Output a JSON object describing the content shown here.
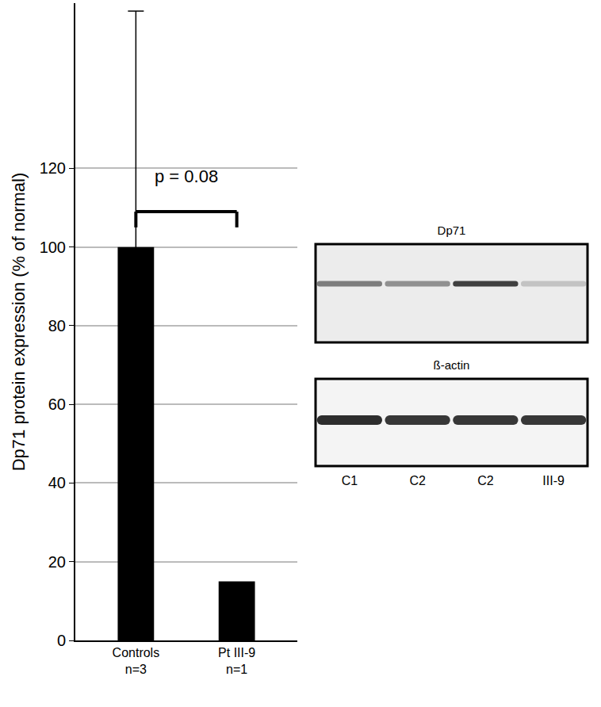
{
  "chart_data": {
    "type": "bar",
    "categories": [
      "Controls\nn=3",
      "Pt III-9\nn=1"
    ],
    "values": [
      100,
      15
    ],
    "error_plus": [
      60,
      null
    ],
    "error_minus": [
      40,
      null
    ],
    "color": "#000000",
    "y_label": "Dp71 protein expression (% of normal)",
    "ylim": [
      0,
      162
    ],
    "yticks": [
      0,
      20,
      40,
      60,
      80,
      100,
      120
    ],
    "grid": true,
    "annotations": [
      {
        "text": "p = 0.08",
        "between": [
          0,
          1
        ],
        "y": 115
      }
    ]
  },
  "blots": [
    {
      "label": "Dp71",
      "band_intensity": [
        0.55,
        0.45,
        0.85,
        0.2
      ]
    },
    {
      "label": "ß-actin",
      "band_intensity": [
        0.95,
        0.9,
        0.9,
        0.9
      ]
    }
  ],
  "lanes": [
    "C1",
    "C2",
    "C2",
    "III-9"
  ]
}
